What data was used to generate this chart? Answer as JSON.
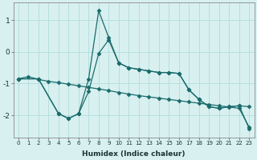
{
  "xlabel": "Humidex (Indice chaleur)",
  "bg_color": "#d8f0f0",
  "line_color": "#1a6b6b",
  "grid_color": "#b8dede",
  "xlim": [
    -0.5,
    23.5
  ],
  "ylim": [
    -2.7,
    1.55
  ],
  "yticks": [
    -2,
    -1,
    0,
    1
  ],
  "xticks": [
    0,
    1,
    2,
    3,
    4,
    5,
    6,
    7,
    8,
    9,
    10,
    11,
    12,
    13,
    14,
    15,
    16,
    17,
    18,
    19,
    20,
    21,
    22,
    23
  ],
  "line1_x": [
    0,
    1,
    2,
    3,
    4,
    5,
    6,
    7,
    8,
    9,
    10,
    11,
    12,
    13,
    14,
    15,
    16,
    17,
    18,
    19,
    20,
    21,
    22,
    23
  ],
  "line1_y": [
    -0.85,
    -0.78,
    -0.87,
    -0.93,
    -0.97,
    -1.02,
    -1.07,
    -1.12,
    -1.17,
    -1.22,
    -1.28,
    -1.33,
    -1.38,
    -1.42,
    -1.46,
    -1.5,
    -1.54,
    -1.58,
    -1.62,
    -1.66,
    -1.7,
    -1.74,
    -1.78,
    -2.38
  ],
  "line2_x": [
    0,
    2,
    4,
    5,
    6,
    7,
    8,
    9,
    10,
    11,
    12,
    13,
    14,
    15,
    16,
    17,
    18,
    19,
    20,
    21,
    22,
    23
  ],
  "line2_y": [
    -0.85,
    -0.85,
    -1.95,
    -2.1,
    -1.95,
    -1.25,
    -0.05,
    0.38,
    -0.35,
    -0.5,
    -0.55,
    -0.6,
    -0.65,
    -0.65,
    -0.68,
    -1.2,
    -1.5,
    -1.73,
    -1.78,
    -1.73,
    -1.7,
    -1.73
  ],
  "line3_x": [
    0,
    2,
    4,
    5,
    6,
    7,
    8,
    9,
    10,
    11,
    12,
    13,
    14,
    15,
    16,
    17,
    18,
    19,
    20,
    21,
    22,
    23
  ],
  "line3_y": [
    -0.85,
    -0.85,
    -1.95,
    -2.1,
    -1.95,
    -0.85,
    1.3,
    0.45,
    -0.35,
    -0.5,
    -0.55,
    -0.6,
    -0.65,
    -0.65,
    -0.68,
    -1.2,
    -1.5,
    -1.73,
    -1.78,
    -1.73,
    -1.7,
    -2.42
  ]
}
